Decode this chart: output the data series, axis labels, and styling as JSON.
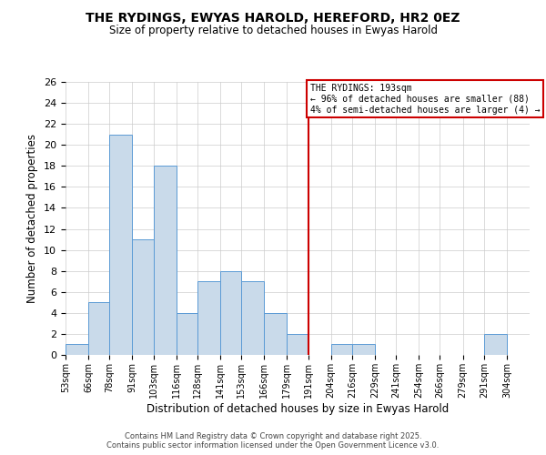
{
  "title": "THE RYDINGS, EWYAS HAROLD, HEREFORD, HR2 0EZ",
  "subtitle": "Size of property relative to detached houses in Ewyas Harold",
  "xlabel": "Distribution of detached houses by size in Ewyas Harold",
  "ylabel": "Number of detached properties",
  "bin_edges": [
    53,
    66,
    78,
    91,
    103,
    116,
    128,
    141,
    153,
    166,
    179,
    191,
    204,
    216,
    229,
    241,
    254,
    266,
    279,
    291,
    304,
    317
  ],
  "bin_labels": [
    "53sqm",
    "66sqm",
    "78sqm",
    "91sqm",
    "103sqm",
    "116sqm",
    "128sqm",
    "141sqm",
    "153sqm",
    "166sqm",
    "179sqm",
    "191sqm",
    "204sqm",
    "216sqm",
    "229sqm",
    "241sqm",
    "254sqm",
    "266sqm",
    "279sqm",
    "291sqm",
    "304sqm"
  ],
  "heights": [
    1,
    5,
    21,
    11,
    18,
    4,
    7,
    8,
    7,
    4,
    2,
    0,
    1,
    1,
    0,
    0,
    0,
    0,
    0,
    2,
    0
  ],
  "bar_facecolor": "#c9daea",
  "bar_edgecolor": "#5b9bd5",
  "vline_x": 191,
  "vline_color": "#cc0000",
  "annotation_title": "THE RYDINGS: 193sqm",
  "annotation_line1": "← 96% of detached houses are smaller (88)",
  "annotation_line2": "4% of semi-detached houses are larger (4) →",
  "annotation_box_edgecolor": "#cc0000",
  "ylim": [
    0,
    26
  ],
  "yticks": [
    0,
    2,
    4,
    6,
    8,
    10,
    12,
    14,
    16,
    18,
    20,
    22,
    24,
    26
  ],
  "grid_color": "#cccccc",
  "background_color": "#ffffff",
  "footnote1": "Contains HM Land Registry data © Crown copyright and database right 2025.",
  "footnote2": "Contains public sector information licensed under the Open Government Licence v3.0."
}
